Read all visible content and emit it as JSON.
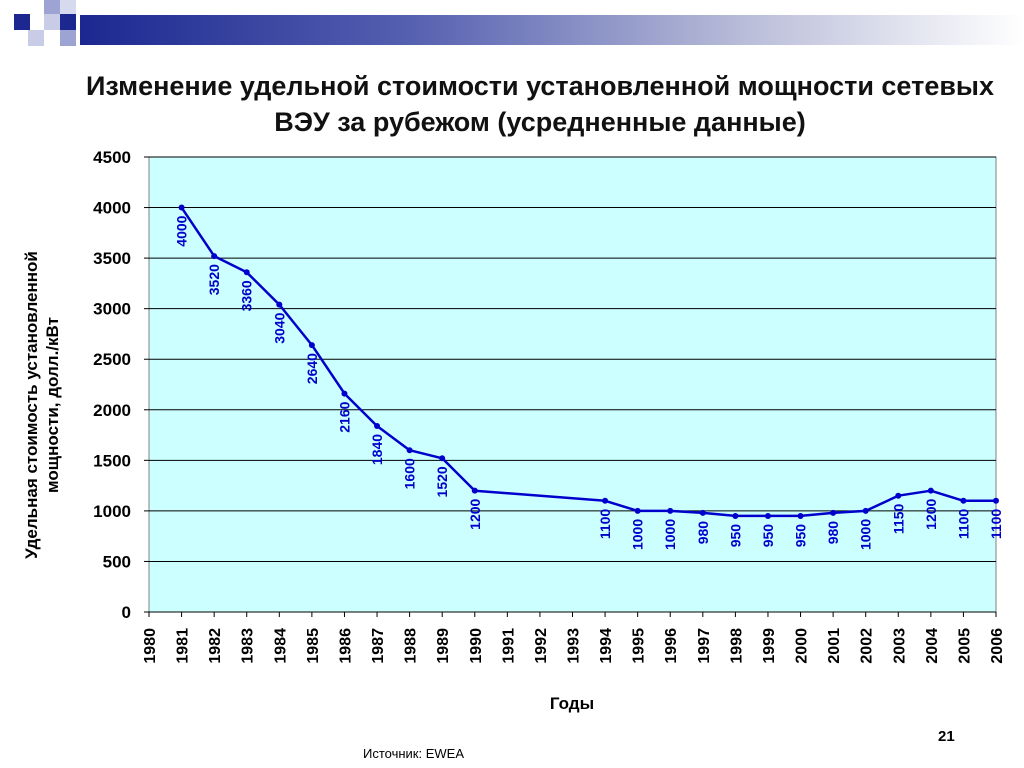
{
  "slide": {
    "source": "Источник: EWEA",
    "page_number": "21"
  },
  "colors": {
    "plot_background": "#ccffff",
    "line": "#0000cc",
    "label": "#0000cc",
    "header_bar": "#1c2890"
  },
  "chart_data": {
    "type": "line",
    "title": "Изменение удельной стоимости установленной мощности сетевых ВЭУ за рубежом (усредненные данные)",
    "xlabel": "Годы",
    "ylabel": "Удельная стоимость установленной мощности, долл./кВт",
    "ylim": [
      0,
      4500
    ],
    "yticks": [
      0,
      500,
      1000,
      1500,
      2000,
      2500,
      3000,
      3500,
      4000,
      4500
    ],
    "xticks": [
      "1980",
      "1981",
      "1982",
      "1983",
      "1984",
      "1985",
      "1986",
      "1987",
      "1988",
      "1989",
      "1990",
      "1991",
      "1992",
      "1993",
      "1994",
      "1995",
      "1996",
      "1997",
      "1998",
      "1999",
      "2000",
      "2001",
      "2002",
      "2003",
      "2004",
      "2005",
      "2006"
    ],
    "grid": true,
    "x": [
      1981,
      1982,
      1983,
      1984,
      1985,
      1986,
      1987,
      1988,
      1989,
      1990,
      1994,
      1995,
      1996,
      1997,
      1998,
      1999,
      2000,
      2001,
      2002,
      2003,
      2004,
      2005,
      2006
    ],
    "y": [
      4000,
      3520,
      3360,
      3040,
      2640,
      2160,
      1840,
      1600,
      1520,
      1200,
      1100,
      1000,
      1000,
      980,
      950,
      950,
      950,
      980,
      1000,
      1150,
      1200,
      1100,
      1100
    ]
  }
}
